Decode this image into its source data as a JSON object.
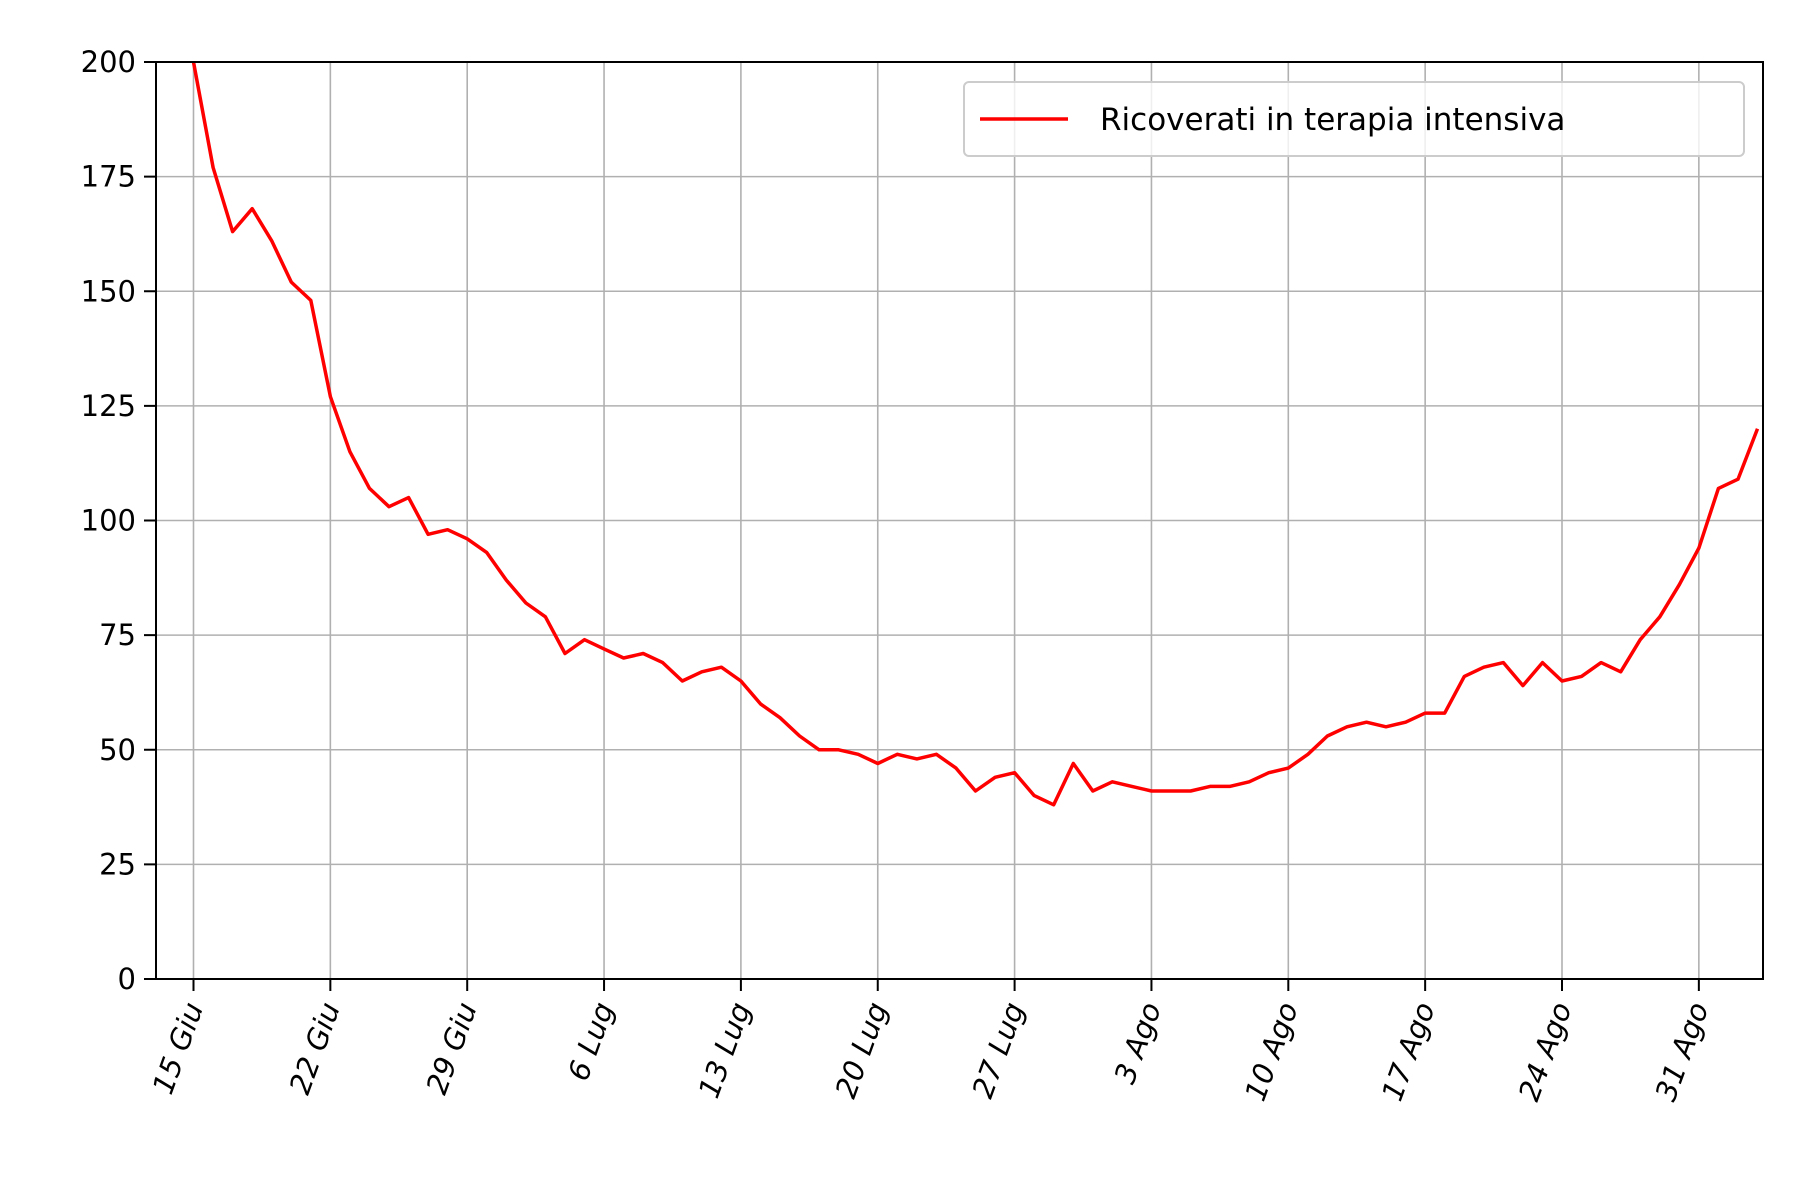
{
  "chart_data": {
    "type": "line",
    "title": "",
    "xlabel": "",
    "ylabel": "",
    "ylim": [
      0,
      200
    ],
    "y_ticks": [
      0,
      25,
      50,
      75,
      100,
      125,
      150,
      175,
      200
    ],
    "x_ticks": [
      {
        "day": 0,
        "label": "15 Giu"
      },
      {
        "day": 7,
        "label": "22 Giu"
      },
      {
        "day": 14,
        "label": "29 Giu"
      },
      {
        "day": 21,
        "label": "6 Lug"
      },
      {
        "day": 28,
        "label": "13 Lug"
      },
      {
        "day": 35,
        "label": "20 Lug"
      },
      {
        "day": 42,
        "label": "27 Lug"
      },
      {
        "day": 49,
        "label": "3 Ago"
      },
      {
        "day": 56,
        "label": "10 Ago"
      },
      {
        "day": 63,
        "label": "17 Ago"
      },
      {
        "day": 70,
        "label": "24 Ago"
      },
      {
        "day": 77,
        "label": "31 Ago"
      }
    ],
    "grid": true,
    "legend_position": "top-right",
    "series": [
      {
        "name": "Ricoverati in terapia intensiva",
        "color": "#ff0000",
        "values": [
          200,
          177,
          163,
          168,
          161,
          152,
          148,
          127,
          115,
          107,
          103,
          105,
          97,
          98,
          96,
          93,
          87,
          82,
          79,
          71,
          74,
          72,
          70,
          71,
          69,
          65,
          67,
          68,
          65,
          60,
          57,
          53,
          50,
          50,
          49,
          47,
          49,
          48,
          49,
          46,
          41,
          44,
          45,
          40,
          38,
          47,
          41,
          43,
          42,
          41,
          41,
          41,
          42,
          42,
          43,
          45,
          46,
          49,
          53,
          55,
          56,
          55,
          56,
          58,
          58,
          66,
          68,
          69,
          64,
          69,
          65,
          66,
          69,
          67,
          74,
          79,
          86,
          94,
          107,
          109,
          120
        ]
      }
    ]
  }
}
